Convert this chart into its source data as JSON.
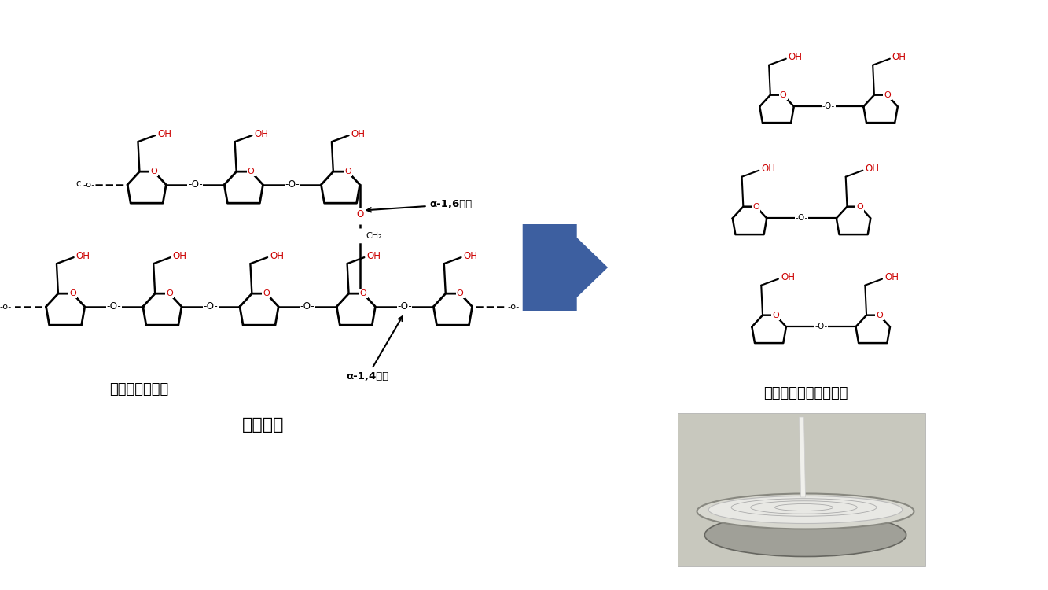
{
  "bg_color": "#ffffff",
  "ring_color": "#000000",
  "oh_color": "#cc0000",
  "label_enzyme": "酵素による切断",
  "label_denpun": "でんぷん",
  "label_alpha16": "α-1,6結合",
  "label_alpha14": "α-1,4結合",
  "label_ch2": "CH₂",
  "label_maltose": "マルトース（麦芽糖）",
  "label_c": "c",
  "ring_lw": 2.0,
  "bond_lw": 1.8,
  "fig_width": 13.33,
  "fig_height": 7.5,
  "arrow_color": "#3d5fa0"
}
